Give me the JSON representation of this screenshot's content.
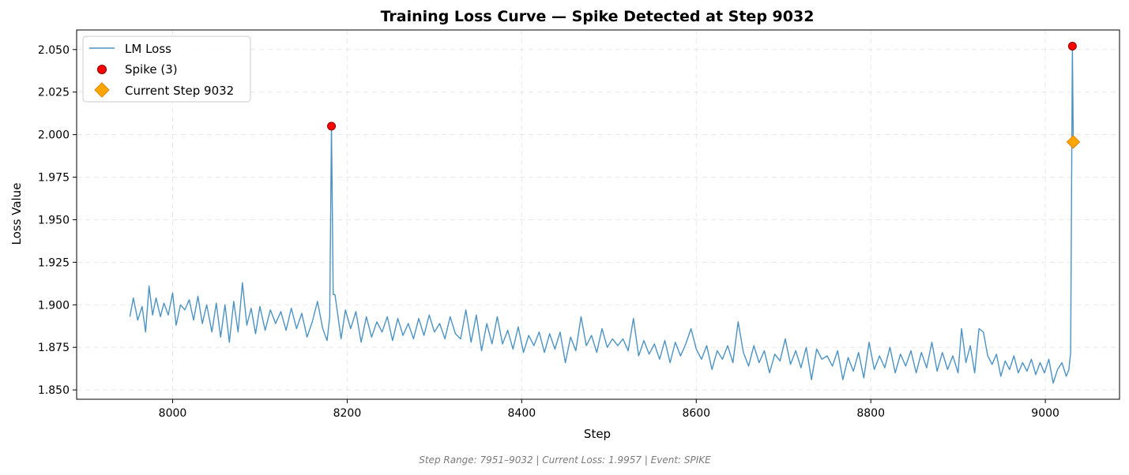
{
  "chart_data": {
    "type": "line",
    "title": "Training Loss Curve — Spike Detected at Step 9032",
    "xlabel": "Step",
    "ylabel": "Loss Value",
    "xlim": [
      7890,
      9085
    ],
    "ylim": [
      1.8445,
      2.0615
    ],
    "x_ticks": [
      8000,
      8200,
      8400,
      8600,
      8800,
      9000
    ],
    "y_ticks": [
      1.85,
      1.875,
      1.9,
      1.925,
      1.95,
      1.975,
      2.0,
      2.025,
      2.05
    ],
    "grid": true,
    "legend_position": "top-left",
    "series": [
      {
        "name": "LM Loss",
        "color": "#1f77b4",
        "points": [
          [
            7951,
            1.893
          ],
          [
            7955,
            1.904
          ],
          [
            7960,
            1.891
          ],
          [
            7965,
            1.899
          ],
          [
            7969,
            1.884
          ],
          [
            7973,
            1.911
          ],
          [
            7977,
            1.894
          ],
          [
            7981,
            1.904
          ],
          [
            7986,
            1.893
          ],
          [
            7990,
            1.901
          ],
          [
            7995,
            1.894
          ],
          [
            8000,
            1.907
          ],
          [
            8004,
            1.888
          ],
          [
            8009,
            1.9
          ],
          [
            8014,
            1.897
          ],
          [
            8019,
            1.903
          ],
          [
            8024,
            1.891
          ],
          [
            8029,
            1.905
          ],
          [
            8034,
            1.889
          ],
          [
            8039,
            1.9
          ],
          [
            8045,
            1.884
          ],
          [
            8050,
            1.901
          ],
          [
            8055,
            1.881
          ],
          [
            8060,
            1.9
          ],
          [
            8065,
            1.878
          ],
          [
            8070,
            1.902
          ],
          [
            8075,
            1.884
          ],
          [
            8080,
            1.913
          ],
          [
            8085,
            1.888
          ],
          [
            8090,
            1.898
          ],
          [
            8095,
            1.883
          ],
          [
            8100,
            1.899
          ],
          [
            8106,
            1.885
          ],
          [
            8112,
            1.897
          ],
          [
            8118,
            1.889
          ],
          [
            8124,
            1.896
          ],
          [
            8130,
            1.885
          ],
          [
            8136,
            1.898
          ],
          [
            8142,
            1.886
          ],
          [
            8148,
            1.895
          ],
          [
            8154,
            1.881
          ],
          [
            8160,
            1.89
          ],
          [
            8166,
            1.902
          ],
          [
            8172,
            1.886
          ],
          [
            8177,
            1.879
          ],
          [
            8180,
            1.893
          ],
          [
            8182,
            2.005
          ],
          [
            8184,
            1.906
          ],
          [
            8186,
            1.906
          ],
          [
            8189,
            1.895
          ],
          [
            8193,
            1.88
          ],
          [
            8198,
            1.897
          ],
          [
            8204,
            1.886
          ],
          [
            8210,
            1.896
          ],
          [
            8216,
            1.878
          ],
          [
            8222,
            1.893
          ],
          [
            8228,
            1.881
          ],
          [
            8234,
            1.89
          ],
          [
            8240,
            1.884
          ],
          [
            8246,
            1.893
          ],
          [
            8252,
            1.879
          ],
          [
            8258,
            1.892
          ],
          [
            8264,
            1.882
          ],
          [
            8270,
            1.889
          ],
          [
            8276,
            1.88
          ],
          [
            8282,
            1.892
          ],
          [
            8288,
            1.882
          ],
          [
            8294,
            1.894
          ],
          [
            8300,
            1.884
          ],
          [
            8306,
            1.889
          ],
          [
            8312,
            1.88
          ],
          [
            8318,
            1.893
          ],
          [
            8324,
            1.883
          ],
          [
            8330,
            1.88
          ],
          [
            8336,
            1.897
          ],
          [
            8342,
            1.878
          ],
          [
            8348,
            1.894
          ],
          [
            8354,
            1.873
          ],
          [
            8360,
            1.889
          ],
          [
            8366,
            1.877
          ],
          [
            8372,
            1.893
          ],
          [
            8378,
            1.877
          ],
          [
            8384,
            1.885
          ],
          [
            8390,
            1.874
          ],
          [
            8396,
            1.887
          ],
          [
            8402,
            1.872
          ],
          [
            8408,
            1.882
          ],
          [
            8414,
            1.876
          ],
          [
            8420,
            1.884
          ],
          [
            8426,
            1.872
          ],
          [
            8432,
            1.883
          ],
          [
            8438,
            1.874
          ],
          [
            8444,
            1.884
          ],
          [
            8450,
            1.866
          ],
          [
            8456,
            1.881
          ],
          [
            8462,
            1.873
          ],
          [
            8468,
            1.893
          ],
          [
            8474,
            1.876
          ],
          [
            8480,
            1.882
          ],
          [
            8486,
            1.872
          ],
          [
            8492,
            1.886
          ],
          [
            8498,
            1.875
          ],
          [
            8504,
            1.88
          ],
          [
            8510,
            1.876
          ],
          [
            8516,
            1.88
          ],
          [
            8522,
            1.873
          ],
          [
            8528,
            1.892
          ],
          [
            8534,
            1.87
          ],
          [
            8540,
            1.879
          ],
          [
            8546,
            1.871
          ],
          [
            8552,
            1.877
          ],
          [
            8558,
            1.868
          ],
          [
            8564,
            1.879
          ],
          [
            8570,
            1.866
          ],
          [
            8576,
            1.878
          ],
          [
            8582,
            1.87
          ],
          [
            8588,
            1.877
          ],
          [
            8594,
            1.886
          ],
          [
            8600,
            1.874
          ],
          [
            8606,
            1.868
          ],
          [
            8612,
            1.876
          ],
          [
            8618,
            1.862
          ],
          [
            8624,
            1.873
          ],
          [
            8630,
            1.868
          ],
          [
            8636,
            1.876
          ],
          [
            8642,
            1.866
          ],
          [
            8648,
            1.89
          ],
          [
            8654,
            1.872
          ],
          [
            8660,
            1.864
          ],
          [
            8666,
            1.876
          ],
          [
            8672,
            1.866
          ],
          [
            8678,
            1.873
          ],
          [
            8684,
            1.86
          ],
          [
            8690,
            1.871
          ],
          [
            8696,
            1.867
          ],
          [
            8702,
            1.88
          ],
          [
            8708,
            1.865
          ],
          [
            8714,
            1.873
          ],
          [
            8720,
            1.863
          ],
          [
            8726,
            1.875
          ],
          [
            8732,
            1.856
          ],
          [
            8738,
            1.874
          ],
          [
            8744,
            1.868
          ],
          [
            8750,
            1.87
          ],
          [
            8756,
            1.864
          ],
          [
            8762,
            1.873
          ],
          [
            8768,
            1.856
          ],
          [
            8774,
            1.869
          ],
          [
            8780,
            1.861
          ],
          [
            8786,
            1.872
          ],
          [
            8792,
            1.857
          ],
          [
            8798,
            1.878
          ],
          [
            8804,
            1.862
          ],
          [
            8810,
            1.87
          ],
          [
            8816,
            1.863
          ],
          [
            8822,
            1.875
          ],
          [
            8828,
            1.86
          ],
          [
            8834,
            1.871
          ],
          [
            8840,
            1.864
          ],
          [
            8846,
            1.873
          ],
          [
            8852,
            1.86
          ],
          [
            8858,
            1.872
          ],
          [
            8864,
            1.863
          ],
          [
            8870,
            1.878
          ],
          [
            8876,
            1.861
          ],
          [
            8882,
            1.872
          ],
          [
            8888,
            1.862
          ],
          [
            8894,
            1.87
          ],
          [
            8900,
            1.86
          ],
          [
            8904,
            1.886
          ],
          [
            8909,
            1.866
          ],
          [
            8914,
            1.876
          ],
          [
            8919,
            1.86
          ],
          [
            8924,
            1.886
          ],
          [
            8929,
            1.884
          ],
          [
            8934,
            1.87
          ],
          [
            8939,
            1.865
          ],
          [
            8944,
            1.871
          ],
          [
            8949,
            1.858
          ],
          [
            8954,
            1.867
          ],
          [
            8959,
            1.862
          ],
          [
            8964,
            1.87
          ],
          [
            8969,
            1.86
          ],
          [
            8974,
            1.866
          ],
          [
            8979,
            1.861
          ],
          [
            8984,
            1.868
          ],
          [
            8989,
            1.859
          ],
          [
            8994,
            1.866
          ],
          [
            8999,
            1.86
          ],
          [
            9004,
            1.868
          ],
          [
            9009,
            1.854
          ],
          [
            9014,
            1.862
          ],
          [
            9019,
            1.866
          ],
          [
            9024,
            1.858
          ],
          [
            9027,
            1.862
          ],
          [
            9029,
            1.872
          ],
          [
            9031,
            2.052
          ],
          [
            9032,
            1.9957
          ]
        ]
      },
      {
        "name": "Spike (3)",
        "color": "#ff0000",
        "points": [
          [
            8182,
            2.005
          ],
          [
            9031,
            2.052
          ]
        ]
      },
      {
        "name": "Current Step 9032",
        "color": "#ffa500",
        "points": [
          [
            9032,
            1.9957
          ]
        ]
      }
    ],
    "footer": "Step Range: 7951–9032 | Current Loss: 1.9957 | Event: SPIKE"
  }
}
